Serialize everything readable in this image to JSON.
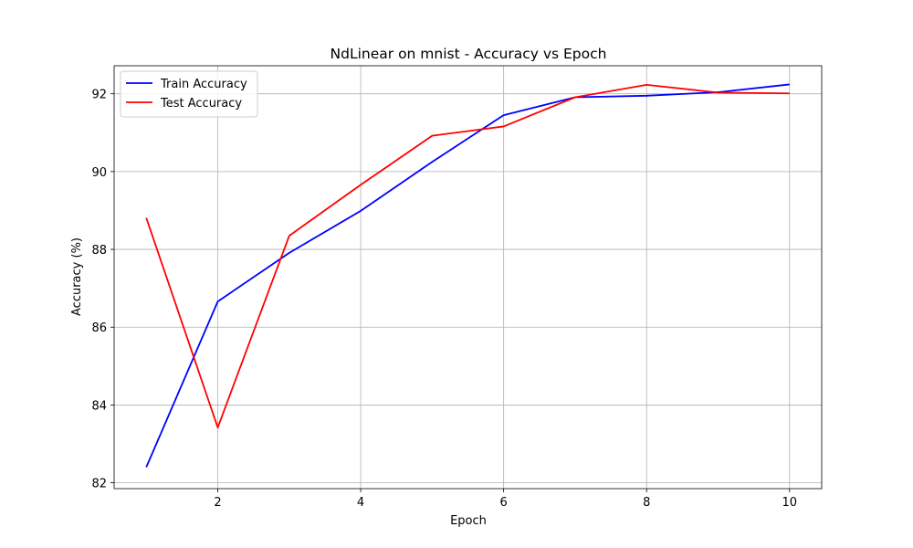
{
  "chart_data": {
    "type": "line",
    "title": "NdLinear on mnist - Accuracy vs Epoch",
    "xlabel": "Epoch",
    "ylabel": "Accuracy (%)",
    "x": [
      1,
      2,
      3,
      4,
      5,
      6,
      7,
      8,
      9,
      10
    ],
    "xlim": [
      0.55,
      10.45
    ],
    "ylim": [
      81.85,
      92.72
    ],
    "xticks": [
      2,
      4,
      6,
      8,
      10
    ],
    "yticks": [
      82,
      84,
      86,
      88,
      90,
      92
    ],
    "grid": true,
    "legend_position": "top-left",
    "series": [
      {
        "name": "Train Accuracy",
        "color": "#0000ff",
        "values": [
          82.4,
          86.66,
          87.91,
          88.99,
          90.25,
          91.45,
          91.91,
          91.95,
          92.04,
          92.24
        ]
      },
      {
        "name": "Test Accuracy",
        "color": "#ff0000",
        "values": [
          88.81,
          83.42,
          88.35,
          89.66,
          90.92,
          91.16,
          91.91,
          92.23,
          92.03,
          92.01
        ]
      }
    ]
  }
}
